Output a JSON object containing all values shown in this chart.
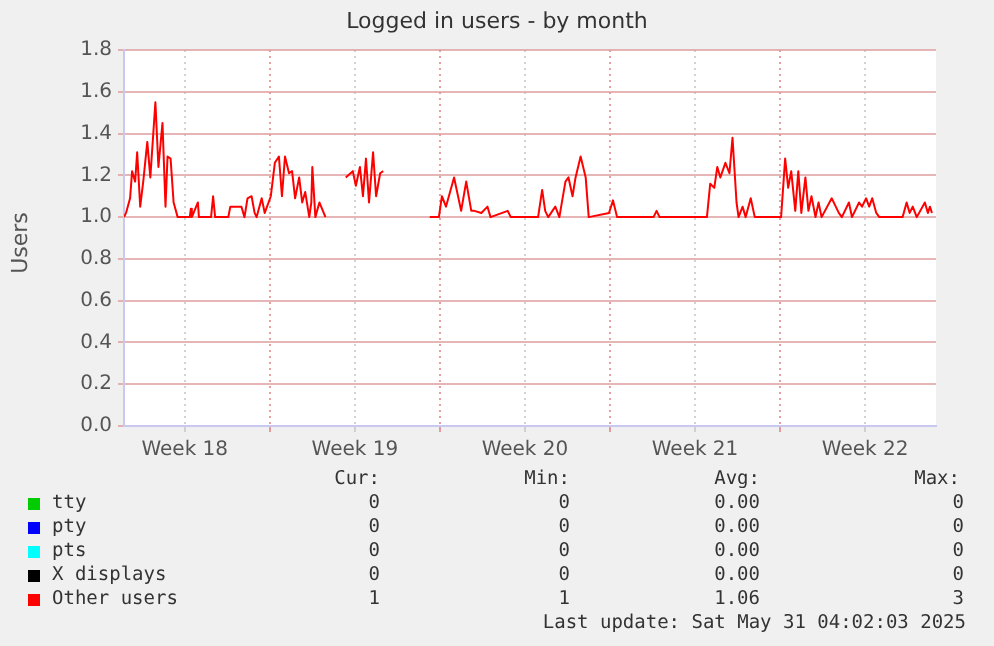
{
  "chart_data": {
    "type": "line",
    "title": "Logged in users - by month",
    "ylabel": "Users",
    "xlim": [
      "2025-04-29",
      "2025-06-01T10:00"
    ],
    "xticks": [
      {
        "value": "2025-05-01T12:00",
        "label": "Week 18"
      },
      {
        "value": "2025-05-05",
        "label": null
      },
      {
        "value": "2025-05-08T12:00",
        "label": "Week 19"
      },
      {
        "value": "2025-05-12",
        "label": null
      },
      {
        "value": "2025-05-15T12:00",
        "label": "Week 20"
      },
      {
        "value": "2025-05-19",
        "label": null
      },
      {
        "value": "2025-05-22T12:00",
        "label": "Week 21"
      },
      {
        "value": "2025-05-26",
        "label": null
      },
      {
        "value": "2025-05-29T12:00",
        "label": "Week 22"
      }
    ],
    "ylim": [
      0,
      1.8
    ],
    "yticks": [
      {
        "value": 0,
        "label": "0.0"
      },
      {
        "value": 0.2,
        "label": "0.2"
      },
      {
        "value": 0.4,
        "label": "0.4"
      },
      {
        "value": 0.6,
        "label": "0.6"
      },
      {
        "value": 0.8,
        "label": "0.8"
      },
      {
        "value": 1,
        "label": "1.0"
      },
      {
        "value": 1.2,
        "label": "1.2"
      },
      {
        "value": 1.4,
        "label": "1.4"
      },
      {
        "value": 1.6,
        "label": "1.6"
      },
      {
        "value": 1.8,
        "label": "1.8"
      }
    ],
    "grid": true,
    "legend": "bottom",
    "marker": "none",
    "line_style": "solid",
    "series": [
      {
        "name": "tty",
        "color": "#00cc00"
      },
      {
        "name": "pty",
        "color": "#0000ff"
      },
      {
        "name": "pts",
        "color": "#00ffff"
      },
      {
        "name": "X displays",
        "color": "#000000"
      },
      {
        "name": "Other users",
        "color": "#ff0000",
        "x": [
          "2025-04-29T00:00",
          "2025-04-29T02:00",
          "2025-04-29T06:00",
          "2025-04-29T08:00",
          "2025-04-29T11:00",
          "2025-04-29T13:00",
          "2025-04-29T16:00",
          "2025-04-29T19:00",
          "2025-04-29T23:00",
          "2025-04-30T02:00",
          "2025-04-30T07:00",
          "2025-04-30T10:00",
          "2025-04-30T14:00",
          "2025-04-30T17:00",
          "2025-04-30T19:00",
          "2025-04-30T22:00",
          "2025-05-01T01:00",
          "2025-05-01T05:00",
          "2025-05-01T17:00",
          "2025-05-01T18:00",
          "2025-05-01T19:00",
          "2025-05-02T01:00",
          "2025-05-02T02:00",
          "2025-05-02T14:00",
          "2025-05-02T16:00",
          "2025-05-02T18:00",
          "2025-05-03T07:00",
          "2025-05-03T09:00",
          "2025-05-03T20:00",
          "2025-05-03T23:00",
          "2025-05-04T02:00",
          "2025-05-04T06:00",
          "2025-05-04T09:00",
          "2025-05-04T11:00",
          "2025-05-04T16:00",
          "2025-05-04T19:00",
          "2025-05-05T01:00",
          "2025-05-05T05:00",
          "2025-05-05T09:00",
          "2025-05-05T12:00",
          "2025-05-05T15:00",
          "2025-05-05T19:00",
          "2025-05-05T22:00",
          "2025-05-06T01:00",
          "2025-05-06T05:00",
          "2025-05-06T08:00",
          "2025-05-06T11:00",
          "2025-05-06T15:00",
          "2025-05-06T17:00",
          "2025-05-06T18:00",
          "2025-05-06T21:00",
          "2025-05-07T01:00",
          "2025-05-07T07:00",
          "2025-05-07T17:00",
          "2025-05-08T03:00",
          "2025-05-08T10:00",
          "2025-05-08T13:00",
          "2025-05-08T17:00",
          "2025-05-08T20:00",
          "2025-05-08T23:00",
          "2025-05-09T02:00",
          "2025-05-09T06:00",
          "2025-05-09T09:00",
          "2025-05-09T13:00",
          "2025-05-09T16:00",
          "2025-05-10T12:00",
          "2025-05-11T14:00",
          "2025-05-11T23:00",
          "2025-05-12T02:00",
          "2025-05-12T06:00",
          "2025-05-12T14:00",
          "2025-05-12T21:00",
          "2025-05-13T02:00",
          "2025-05-13T07:00",
          "2025-05-13T10:00",
          "2025-05-13T17:00",
          "2025-05-13T23:00",
          "2025-05-14T02:00",
          "2025-05-14T19:00",
          "2025-05-14T22:00",
          "2025-05-16T01:00",
          "2025-05-16T05:00",
          "2025-05-16T08:00",
          "2025-05-16T11:00",
          "2025-05-16T18:00",
          "2025-05-16T22:00",
          "2025-05-17T04:00",
          "2025-05-17T07:00",
          "2025-05-17T11:00",
          "2025-05-17T14:00",
          "2025-05-17T19:00",
          "2025-05-18T00:00",
          "2025-05-18T03:00",
          "2025-05-18T23:00",
          "2025-05-19T03:00",
          "2025-05-19T07:00",
          "2025-05-20T19:00",
          "2025-05-20T22:00",
          "2025-05-21T01:00",
          "2025-05-22T23:45",
          "2025-05-23T03:00",
          "2025-05-23T07:00",
          "2025-05-23T10:00",
          "2025-05-23T13:00",
          "2025-05-23T18:00",
          "2025-05-23T22:00",
          "2025-05-24T01:00",
          "2025-05-24T05:00",
          "2025-05-24T07:00",
          "2025-05-24T11:00",
          "2025-05-24T14:00",
          "2025-05-24T19:00",
          "2025-05-24T23:00",
          "2025-05-26T01:00",
          "2025-05-26T05:00",
          "2025-05-26T08:00",
          "2025-05-26T11:00",
          "2025-05-26T15:00",
          "2025-05-26T18:00",
          "2025-05-26T21:00",
          "2025-05-27T01:00",
          "2025-05-27T04:00",
          "2025-05-27T07:00",
          "2025-05-27T11:00",
          "2025-05-27T14:00",
          "2025-05-27T17:00",
          "2025-05-28T03:00",
          "2025-05-28T07:00",
          "2025-05-28T10:00",
          "2025-05-28T13:00",
          "2025-05-28T20:00",
          "2025-05-28T23:00",
          "2025-05-29T06:00",
          "2025-05-29T09:00",
          "2025-05-29T13:00",
          "2025-05-29T16:00",
          "2025-05-29T19:00",
          "2025-05-29T23:00",
          "2025-05-30T02:00",
          "2025-05-31T01:00",
          "2025-05-31T05:00",
          "2025-05-31T08:00",
          "2025-05-31T11:00",
          "2025-05-31T15:00",
          "2025-05-31T23:00",
          "2025-06-01T02:00",
          "2025-06-01T04:00",
          "2025-06-01T06:00"
        ],
        "values": [
          1.0,
          1.02,
          1.09,
          1.22,
          1.17,
          1.31,
          1.05,
          1.17,
          1.36,
          1.19,
          1.55,
          1.24,
          1.45,
          1.05,
          1.29,
          1.28,
          1.07,
          1.0,
          1.0,
          1.04,
          1.0,
          1.07,
          1.0,
          1.0,
          1.1,
          1.0,
          1.0,
          1.05,
          1.05,
          1.0,
          1.09,
          1.1,
          1.02,
          1.0,
          1.09,
          1.02,
          1.1,
          1.26,
          1.29,
          1.1,
          1.29,
          1.21,
          1.22,
          1.09,
          1.19,
          1.07,
          1.12,
          1.0,
          1.07,
          1.24,
          1.0,
          1.07,
          1.0,
          null,
          1.19,
          1.22,
          1.15,
          1.24,
          1.1,
          1.28,
          1.07,
          1.31,
          1.1,
          1.21,
          1.22,
          null,
          1.0,
          1.0,
          1.1,
          1.05,
          1.19,
          1.03,
          1.17,
          1.03,
          1.03,
          1.02,
          1.05,
          1.0,
          1.03,
          1.0,
          1.0,
          1.13,
          1.03,
          1.0,
          1.05,
          1.0,
          1.17,
          1.19,
          1.1,
          1.19,
          1.29,
          1.19,
          1.0,
          1.02,
          1.08,
          1.0,
          1.0,
          1.03,
          1.0,
          1.0,
          1.16,
          1.14,
          1.24,
          1.19,
          1.26,
          1.21,
          1.38,
          1.07,
          1.0,
          1.05,
          1.0,
          1.09,
          1.0,
          1.0,
          1.28,
          1.14,
          1.22,
          1.03,
          1.22,
          1.02,
          1.19,
          1.03,
          1.1,
          1.0,
          1.07,
          1.0,
          1.09,
          1.05,
          1.02,
          1.0,
          1.07,
          1.0,
          1.07,
          1.05,
          1.09,
          1.05,
          1.09,
          1.02,
          1.0,
          1.0,
          1.07,
          1.02,
          1.05,
          1.0,
          1.07,
          1.02,
          1.05,
          1.02
        ]
      }
    ],
    "annotations": [
      "Cur:",
      "Min:",
      "Avg:",
      "Max:",
      "0",
      "0",
      "0.00",
      "0",
      "0",
      "0",
      "0.00",
      "0",
      "0",
      "0",
      "0.00",
      "0",
      "0",
      "0",
      "0.00",
      "0",
      "1",
      "1",
      "1.06",
      "3",
      "Last update: Sat May 31 04:02:03 2025"
    ]
  }
}
